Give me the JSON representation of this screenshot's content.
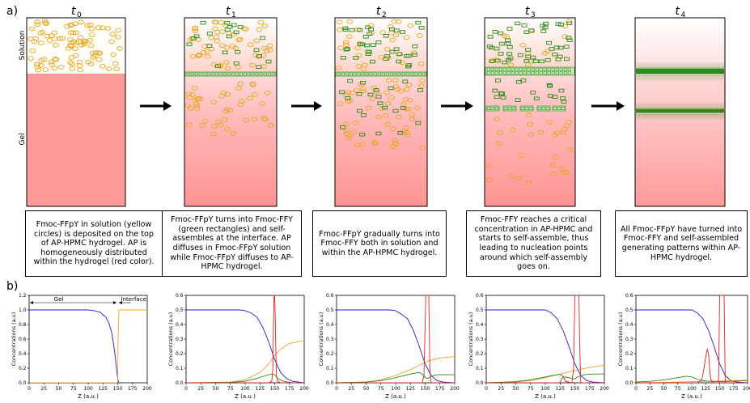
{
  "panel_labels": {
    "a": "a)",
    "b": "b)"
  },
  "time_labels": [
    "t",
    "t",
    "t",
    "t",
    "t"
  ],
  "time_subscripts": [
    "0",
    "1",
    "2",
    "3",
    "4"
  ],
  "side_labels": {
    "solution": "Solution",
    "gel": "Gel"
  },
  "captions": [
    "Fmoc-FFpY in solution (yellow circles) is deposited on the top of AP-HPMC hydrogel. AP is homogeneously distributed within the hydrogel (red color).",
    "Fmoc-FFpY turns into Fmoc-FFY (green rectangles) and self-assembles at the interface. AP diffuses in Fmoc-FFpY solution while Fmoc-FFpY diffuses to AP-HPMC hydrogel.",
    "Fmoc-FFpY gradually turns into Fmoc-FFY both in solution and within the AP-HPMC hydrogel.",
    "Fmoc-FFY reaches a critical concentration in AP-HPMC and starts to self-assemble, thus leading to nucleation points around which self-assembly goes on.",
    "All Fmoc-FFpY have turned into Fmoc-FFY and self-assembled generating patterns within AP-HPMC hydrogel."
  ],
  "colors": {
    "gel": "#ff9a9a",
    "gel_light": "#ffe4e4",
    "yellow": "#e8a820",
    "green": "#2a8a1a",
    "blue": "#1f1fdc",
    "red": "#e62222",
    "orange": "#f0a020",
    "dgreen": "#1e8c1e"
  },
  "chart_data": [
    {
      "type": "line",
      "xlabel": "Z (a.u.)",
      "ylabel": "Concentrations (a.u)",
      "xlim": [
        0,
        200
      ],
      "ylim": [
        0,
        1.2
      ],
      "x_ticks": [
        "0",
        "25",
        "50",
        "75",
        "100",
        "125",
        "150",
        "175",
        "200"
      ],
      "y_ticks": [
        "0.0",
        "0.2",
        "0.4",
        "0.6",
        "0.8",
        "1.0",
        "1.2"
      ],
      "annotations": [
        "Gel",
        "Interface"
      ],
      "series": [
        {
          "color": "blue",
          "x": [
            0,
            100,
            110,
            120,
            130,
            135,
            140,
            145,
            148,
            150,
            152,
            155
          ],
          "y": [
            1.0,
            1.0,
            0.99,
            0.97,
            0.9,
            0.82,
            0.68,
            0.42,
            0.2,
            0.05,
            0.0,
            0.0
          ]
        },
        {
          "color": "orange",
          "x": [
            0,
            150,
            150.5,
            152,
            155,
            200
          ],
          "y": [
            0,
            0,
            0.6,
            1.0,
            1.0,
            1.0
          ]
        }
      ]
    },
    {
      "type": "line",
      "xlabel": "Z (a.u.)",
      "ylabel": "Concentrations (a.u)",
      "xlim": [
        0,
        200
      ],
      "ylim": [
        0,
        0.6
      ],
      "x_ticks": [
        "0",
        "25",
        "50",
        "75",
        "100",
        "125",
        "150",
        "175",
        "200"
      ],
      "y_ticks": [
        "0.0",
        "0.1",
        "0.2",
        "0.3",
        "0.4",
        "0.5",
        "0.6"
      ],
      "series": [
        {
          "color": "blue",
          "x": [
            0,
            90,
            100,
            110,
            120,
            130,
            140,
            150,
            160,
            170,
            180,
            200
          ],
          "y": [
            0.5,
            0.5,
            0.495,
            0.48,
            0.45,
            0.38,
            0.28,
            0.16,
            0.07,
            0.03,
            0.01,
            0.0
          ]
        },
        {
          "color": "orange",
          "x": [
            0,
            75,
            100,
            125,
            140,
            150,
            160,
            175,
            200
          ],
          "y": [
            0,
            0.005,
            0.02,
            0.07,
            0.13,
            0.19,
            0.23,
            0.27,
            0.29
          ]
        },
        {
          "color": "green",
          "x": [
            0,
            75,
            100,
            120,
            135,
            145,
            150,
            155,
            165,
            180,
            200
          ],
          "y": [
            0,
            0.003,
            0.01,
            0.03,
            0.05,
            0.06,
            0.055,
            0.03,
            0.01,
            0.0,
            0.0
          ]
        },
        {
          "color": "red",
          "x": [
            0,
            140,
            145,
            147,
            148,
            149,
            150,
            151,
            152,
            153,
            155,
            160,
            200
          ],
          "y": [
            0,
            0,
            0.01,
            0.1,
            0.4,
            0.6,
            0.6,
            0.45,
            0.2,
            0.05,
            0.01,
            0,
            0
          ]
        }
      ]
    },
    {
      "type": "line",
      "xlabel": "Z (a.u.)",
      "ylabel": "Concentrations (a.u)",
      "xlim": [
        0,
        200
      ],
      "ylim": [
        0,
        0.6
      ],
      "x_ticks": [
        "0",
        "25",
        "50",
        "75",
        "100",
        "125",
        "150",
        "175",
        "200"
      ],
      "y_ticks": [
        "0.0",
        "0.1",
        "0.2",
        "0.3",
        "0.4",
        "0.5",
        "0.6"
      ],
      "series": [
        {
          "color": "blue",
          "x": [
            0,
            90,
            100,
            110,
            120,
            130,
            140,
            150,
            160,
            170,
            180,
            200
          ],
          "y": [
            0.5,
            0.5,
            0.495,
            0.47,
            0.44,
            0.36,
            0.25,
            0.13,
            0.05,
            0.015,
            0.005,
            0.0
          ]
        },
        {
          "color": "orange",
          "x": [
            0,
            50,
            75,
            100,
            125,
            140,
            150,
            160,
            175,
            200
          ],
          "y": [
            0,
            0.005,
            0.02,
            0.05,
            0.09,
            0.12,
            0.14,
            0.155,
            0.17,
            0.18
          ]
        },
        {
          "color": "green",
          "x": [
            0,
            50,
            75,
            100,
            120,
            130,
            140,
            145,
            150,
            155,
            160,
            170,
            185,
            200
          ],
          "y": [
            0,
            0.005,
            0.015,
            0.035,
            0.055,
            0.065,
            0.07,
            0.06,
            0.035,
            0.03,
            0.045,
            0.055,
            0.055,
            0.055
          ]
        },
        {
          "color": "red",
          "x": [
            0,
            145,
            148,
            150,
            151,
            152,
            153,
            154,
            155,
            156,
            157,
            158,
            160,
            200
          ],
          "y": [
            0,
            0,
            0.05,
            0.4,
            0.6,
            0.6,
            0.6,
            0.6,
            0.6,
            0.6,
            0.4,
            0.1,
            0,
            0
          ]
        }
      ]
    },
    {
      "type": "line",
      "xlabel": "Z (a.u.)",
      "ylabel": "Concentrations (a.u)",
      "xlim": [
        0,
        200
      ],
      "ylim": [
        0,
        0.6
      ],
      "x_ticks": [
        "0",
        "25",
        "50",
        "75",
        "100",
        "125",
        "150",
        "175",
        "200"
      ],
      "y_ticks": [
        "0.0",
        "0.1",
        "0.2",
        "0.3",
        "0.4",
        "0.5",
        "0.6"
      ],
      "series": [
        {
          "color": "blue",
          "x": [
            0,
            100,
            110,
            120,
            130,
            140,
            150,
            160,
            170,
            180,
            200
          ],
          "y": [
            0.5,
            0.5,
            0.48,
            0.44,
            0.36,
            0.25,
            0.13,
            0.05,
            0.015,
            0.005,
            0.0
          ]
        },
        {
          "color": "orange",
          "x": [
            0,
            50,
            75,
            100,
            125,
            150,
            175,
            200
          ],
          "y": [
            0,
            0.005,
            0.015,
            0.035,
            0.06,
            0.085,
            0.105,
            0.12
          ]
        },
        {
          "color": "green",
          "x": [
            0,
            50,
            75,
            100,
            115,
            125,
            132,
            140,
            148,
            155,
            165,
            180,
            200
          ],
          "y": [
            0,
            0.008,
            0.02,
            0.04,
            0.052,
            0.058,
            0.04,
            0.035,
            0.025,
            0.04,
            0.055,
            0.06,
            0.06
          ]
        },
        {
          "color": "red",
          "x": [
            0,
            124,
            126,
            128,
            130,
            132,
            134,
            145,
            148,
            150,
            151,
            152,
            153,
            154,
            155,
            156,
            157,
            158,
            160,
            200
          ],
          "y": [
            0,
            0,
            0.01,
            0.03,
            0.04,
            0.03,
            0.01,
            0,
            0.1,
            0.6,
            0.6,
            0.6,
            0.6,
            0.6,
            0.6,
            0.6,
            0.6,
            0.3,
            0,
            0
          ]
        }
      ]
    },
    {
      "type": "line",
      "xlabel": "Z (a.u.)",
      "ylabel": "Concentrations (a.u)",
      "xlim": [
        0,
        200
      ],
      "ylim": [
        0,
        0.6
      ],
      "x_ticks": [
        "0",
        "25",
        "50",
        "75",
        "100",
        "125",
        "150",
        "175",
        "200"
      ],
      "y_ticks": [
        "0.0",
        "0.1",
        "0.2",
        "0.3",
        "0.4",
        "0.5",
        "0.6"
      ],
      "series": [
        {
          "color": "blue",
          "x": [
            0,
            100,
            110,
            120,
            130,
            140,
            150,
            160,
            170,
            180,
            200
          ],
          "y": [
            0.5,
            0.5,
            0.48,
            0.44,
            0.36,
            0.25,
            0.13,
            0.05,
            0.015,
            0.005,
            0.0
          ]
        },
        {
          "color": "orange",
          "x": [
            0,
            50,
            75,
            100,
            125,
            150,
            175,
            200
          ],
          "y": [
            0,
            0.002,
            0.005,
            0.008,
            0.01,
            0.012,
            0.015,
            0.018
          ]
        },
        {
          "color": "green",
          "x": [
            0,
            25,
            50,
            75,
            90,
            100,
            110,
            120,
            130,
            150,
            175,
            200
          ],
          "y": [
            0.005,
            0.01,
            0.02,
            0.035,
            0.045,
            0.04,
            0.025,
            0.015,
            0.01,
            0.008,
            0.01,
            0.015
          ]
        },
        {
          "color": "red",
          "x": [
            0,
            100,
            110,
            118,
            122,
            126,
            128,
            130,
            132,
            134,
            140,
            148,
            150,
            151,
            152,
            153,
            154,
            155,
            156,
            157,
            158,
            160,
            200
          ],
          "y": [
            0,
            0,
            0,
            0.02,
            0.1,
            0.2,
            0.23,
            0.2,
            0.1,
            0.02,
            0,
            0,
            0.6,
            0.6,
            0.6,
            0.6,
            0.6,
            0.6,
            0.6,
            0.6,
            0.6,
            0,
            0
          ]
        }
      ]
    }
  ]
}
